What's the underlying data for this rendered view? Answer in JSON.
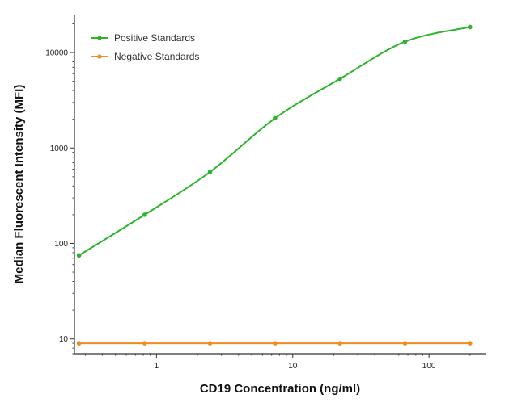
{
  "chart_data": {
    "type": "line",
    "title": "",
    "xlabel": "CD19 Concentration (ng/ml)",
    "ylabel": "Median  Fluorescent Intensity  (MFI)",
    "xscale": "log",
    "yscale": "log",
    "xlim": [
      0.25,
      260
    ],
    "ylim": [
      7,
      25000
    ],
    "x_ticks": [
      1,
      10,
      100
    ],
    "x_tick_labels": [
      "1",
      "10",
      "100"
    ],
    "y_ticks": [
      10,
      100,
      1000,
      10000
    ],
    "y_tick_labels": [
      "10",
      "100",
      "1000",
      "10000"
    ],
    "grid": false,
    "legend_position": "top-left",
    "series": [
      {
        "name": "Positive Standards",
        "color": "#2cb42c",
        "x": [
          0.27,
          0.82,
          2.47,
          7.41,
          22.2,
          66.7,
          200
        ],
        "y": [
          75,
          200,
          560,
          2050,
          5300,
          13000,
          18500
        ]
      },
      {
        "name": "Negative Standards",
        "color": "#f28a1e",
        "x": [
          0.27,
          0.82,
          2.47,
          7.41,
          22.2,
          66.7,
          200
        ],
        "y": [
          9,
          9,
          9,
          9,
          9,
          9,
          9
        ]
      }
    ]
  }
}
